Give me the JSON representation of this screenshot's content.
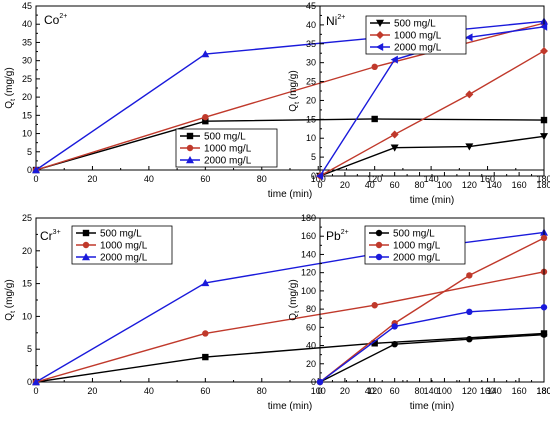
{
  "chart_data": [
    {
      "type": "line",
      "panel_label": "Co",
      "panel_label_sup": "2+",
      "xlabel": "time (min)",
      "ylabel_main": "Q",
      "ylabel_sub": "t",
      "ylabel_unit": " (mg/g)",
      "xlim": [
        0,
        180
      ],
      "ylim": [
        0,
        45
      ],
      "xticks": [
        0,
        20,
        40,
        60,
        80,
        100,
        120,
        140,
        160,
        180
      ],
      "yticks": [
        0,
        5,
        10,
        15,
        20,
        25,
        30,
        35,
        40,
        45
      ],
      "legend_position": "bottom-right",
      "x": [
        0,
        60,
        120,
        180
      ],
      "series": [
        {
          "name": "500 mg/L",
          "marker": "square",
          "color": "#000000",
          "values": [
            0,
            13.4,
            14.0,
            13.7
          ]
        },
        {
          "name": "1000 mg/L",
          "marker": "circle",
          "color": "#c0392b",
          "values": [
            0,
            14.5,
            28.3,
            40.3
          ]
        },
        {
          "name": "2000 mg/L",
          "marker": "triangle-up",
          "color": "#1a1adb",
          "values": [
            0,
            31.8,
            36.2,
            40.8
          ]
        }
      ]
    },
    {
      "type": "line",
      "panel_label": "Ni",
      "panel_label_sup": "2+",
      "xlabel": "time (min)",
      "ylabel_main": "Q",
      "ylabel_sub": "t",
      "ylabel_unit": " (mg/g)",
      "xlim": [
        0,
        180
      ],
      "ylim": [
        0,
        45
      ],
      "xticks": [
        0,
        20,
        40,
        60,
        80,
        100,
        120,
        140,
        160,
        180
      ],
      "yticks": [
        0,
        5,
        10,
        15,
        20,
        25,
        30,
        35,
        40,
        45
      ],
      "legend_position": "top-left",
      "x": [
        0,
        60,
        120,
        180
      ],
      "series": [
        {
          "name": "500 mg/L",
          "marker": "triangle-down",
          "color": "#000000",
          "values": [
            0,
            7.5,
            7.8,
            10.5
          ]
        },
        {
          "name": "1000 mg/L",
          "marker": "diamond",
          "color": "#c0392b",
          "values": [
            0,
            11.0,
            21.6,
            33.1
          ]
        },
        {
          "name": "2000 mg/L",
          "marker": "triangle-left",
          "color": "#1a1adb",
          "values": [
            0,
            30.8,
            36.7,
            39.5
          ]
        }
      ]
    },
    {
      "type": "line",
      "panel_label": "Cr",
      "panel_label_sup": "3+",
      "xlabel": "time (min)",
      "ylabel_main": "Q",
      "ylabel_sub": "t",
      "ylabel_unit": " (mg/g)",
      "xlim": [
        0,
        180
      ],
      "ylim": [
        0,
        25
      ],
      "xticks": [
        0,
        20,
        40,
        60,
        80,
        100,
        120,
        140,
        160,
        180
      ],
      "yticks": [
        0,
        5,
        10,
        15,
        20,
        25
      ],
      "legend_position": "top-left",
      "x": [
        0,
        60,
        120,
        180
      ],
      "series": [
        {
          "name": "500 mg/L",
          "marker": "square",
          "color": "#000000",
          "values": [
            0,
            3.8,
            5.9,
            7.4
          ]
        },
        {
          "name": "1000 mg/L",
          "marker": "circle",
          "color": "#c0392b",
          "values": [
            0,
            7.4,
            11.7,
            16.8
          ]
        },
        {
          "name": "2000 mg/L",
          "marker": "triangle-up",
          "color": "#1a1adb",
          "values": [
            0,
            15.1,
            19.5,
            22.8
          ]
        }
      ]
    },
    {
      "type": "line",
      "panel_label": "Pb",
      "panel_label_sup": "2+",
      "xlabel": "time (min)",
      "ylabel_main": "Q",
      "ylabel_sub": "t",
      "ylabel_unit": " (mg/g)",
      "xlim": [
        0,
        180
      ],
      "ylim": [
        0,
        180
      ],
      "xticks": [
        0,
        20,
        40,
        60,
        80,
        100,
        120,
        140,
        160,
        180
      ],
      "yticks": [
        0,
        20,
        40,
        60,
        80,
        100,
        120,
        140,
        160,
        180
      ],
      "legend_position": "top-left",
      "x": [
        0,
        60,
        120,
        180
      ],
      "series": [
        {
          "name": "500 mg/L",
          "marker": "circle",
          "color": "#000000",
          "values": [
            0,
            41.5,
            47.0,
            52.0
          ]
        },
        {
          "name": "1000 mg/L",
          "marker": "circle",
          "color": "#c0392b",
          "values": [
            0,
            64.5,
            117.0,
            158.0
          ]
        },
        {
          "name": "2000 mg/L",
          "marker": "circle",
          "color": "#1a1adb",
          "values": [
            0,
            61.0,
            77.0,
            82.0
          ]
        }
      ]
    }
  ]
}
